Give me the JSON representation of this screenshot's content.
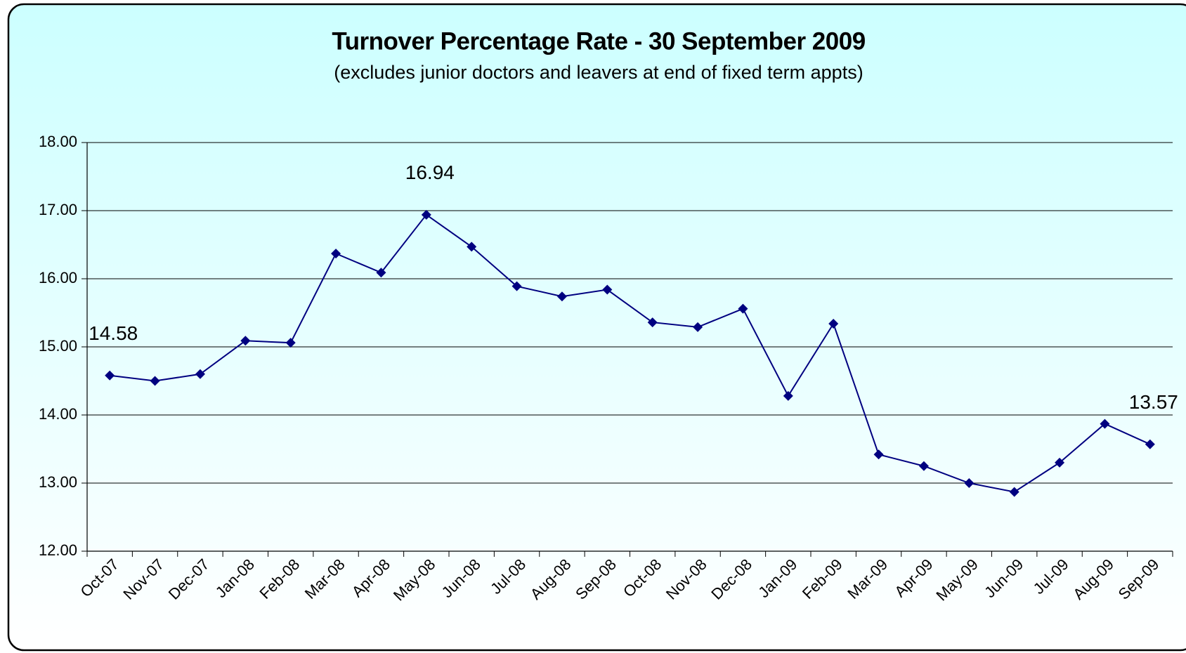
{
  "chart_data": {
    "type": "line",
    "title": "Turnover Percentage Rate - 30 September 2009",
    "subtitle": "(excludes junior doctors and leavers at end of fixed term appts)",
    "categories": [
      "Oct-07",
      "Nov-07",
      "Dec-07",
      "Jan-08",
      "Feb-08",
      "Mar-08",
      "Apr-08",
      "May-08",
      "Jun-08",
      "Jul-08",
      "Aug-08",
      "Sep-08",
      "Oct-08",
      "Nov-08",
      "Dec-08",
      "Jan-09",
      "Feb-09",
      "Mar-09",
      "Apr-09",
      "May-09",
      "Jun-09",
      "Jul-09",
      "Aug-09",
      "Sep-09"
    ],
    "series": [
      {
        "name": "Turnover",
        "color": "#000080",
        "values": [
          14.58,
          14.5,
          14.6,
          15.09,
          15.06,
          16.37,
          16.09,
          16.94,
          16.47,
          15.89,
          15.74,
          15.84,
          15.36,
          15.29,
          15.56,
          14.28,
          15.34,
          13.42,
          13.25,
          13.0,
          12.87,
          13.3,
          13.87,
          13.57
        ],
        "value_labels": [
          "14.58",
          null,
          null,
          null,
          null,
          null,
          null,
          "16.94",
          null,
          null,
          null,
          null,
          null,
          null,
          null,
          null,
          null,
          null,
          null,
          null,
          null,
          null,
          null,
          "13.57"
        ]
      }
    ],
    "ylim": [
      12,
      18
    ],
    "yticks": [
      {
        "value": 12,
        "label": "12.00"
      },
      {
        "value": 13,
        "label": "13.00"
      },
      {
        "value": 14,
        "label": "14.00"
      },
      {
        "value": 15,
        "label": "15.00"
      },
      {
        "value": 16,
        "label": "16.00"
      },
      {
        "value": 17,
        "label": "17.00"
      },
      {
        "value": 18,
        "label": "18.00"
      }
    ],
    "grid": true
  }
}
